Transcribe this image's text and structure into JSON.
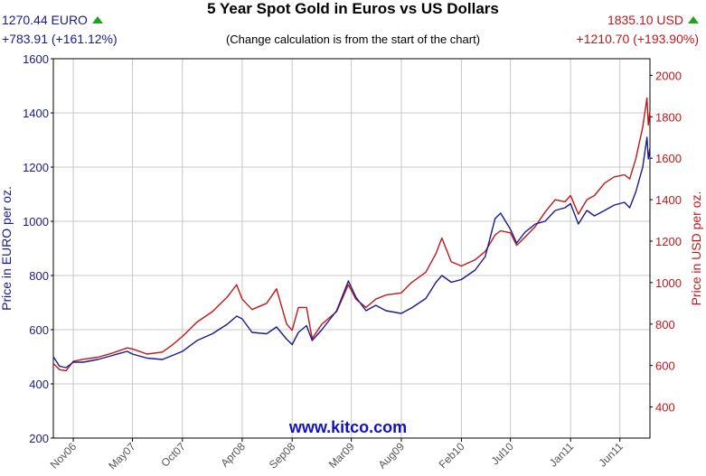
{
  "header": {
    "euro_price": "1270.44 EURO",
    "euro_change": "+783.91 (+161.12%)",
    "usd_price": "1835.10 USD",
    "usd_change": "+1210.70 (+193.90%)",
    "up_icon": "up-triangle-icon",
    "up_color": "#1fa31f"
  },
  "chart_data": {
    "type": "line",
    "title": "5 Year Spot Gold in Euros vs US Dollars",
    "subtitle": "(Change calculation is from the start of the chart)",
    "watermark": "www.kitco.com",
    "ylabel_left": "Price in EURO per oz.",
    "ylabel_right": "Price in USD per oz.",
    "ylim_left": [
      200,
      1600
    ],
    "ylim_right": [
      250,
      2080
    ],
    "yticks_left": [
      200,
      400,
      600,
      800,
      1000,
      1200,
      1400,
      1600
    ],
    "yticks_right": [
      400,
      600,
      800,
      1000,
      1200,
      1400,
      1600,
      1800,
      2000
    ],
    "xlim": [
      "2006-09-01",
      "2011-09-01"
    ],
    "x_ticks": [
      {
        "label": "Nov06",
        "date": "2006-11-01"
      },
      {
        "label": "May07",
        "date": "2007-05-01"
      },
      {
        "label": "Oct07",
        "date": "2007-10-01"
      },
      {
        "label": "Apr08",
        "date": "2008-04-01"
      },
      {
        "label": "Sep08",
        "date": "2008-09-01"
      },
      {
        "label": "Mar09",
        "date": "2009-03-01"
      },
      {
        "label": "Aug09",
        "date": "2009-08-01"
      },
      {
        "label": "Feb10",
        "date": "2010-02-01"
      },
      {
        "label": "Jul10",
        "date": "2010-07-01"
      },
      {
        "label": "Jan11",
        "date": "2011-01-01"
      },
      {
        "label": "Jun11",
        "date": "2011-06-01"
      }
    ],
    "grid": true,
    "colors": {
      "euro": "#1a1a8c",
      "usd": "#c0171b",
      "grid": "#c8c8c8",
      "axis": "#000000"
    },
    "series": [
      {
        "axis": "left",
        "color": "#1a1a8c",
        "points": [
          [
            "2006-09-01",
            500
          ],
          [
            "2006-09-20",
            465
          ],
          [
            "2006-10-10",
            460
          ],
          [
            "2006-11-01",
            480
          ],
          [
            "2006-12-01",
            480
          ],
          [
            "2007-01-15",
            490
          ],
          [
            "2007-03-01",
            505
          ],
          [
            "2007-04-15",
            520
          ],
          [
            "2007-05-01",
            510
          ],
          [
            "2007-06-15",
            495
          ],
          [
            "2007-08-01",
            490
          ],
          [
            "2007-09-01",
            505
          ],
          [
            "2007-10-01",
            520
          ],
          [
            "2007-11-15",
            560
          ],
          [
            "2008-01-01",
            585
          ],
          [
            "2008-02-15",
            620
          ],
          [
            "2008-03-15",
            650
          ],
          [
            "2008-04-01",
            640
          ],
          [
            "2008-05-01",
            590
          ],
          [
            "2008-06-15",
            585
          ],
          [
            "2008-07-15",
            610
          ],
          [
            "2008-08-15",
            565
          ],
          [
            "2008-09-01",
            545
          ],
          [
            "2008-09-20",
            590
          ],
          [
            "2008-10-15",
            615
          ],
          [
            "2008-11-01",
            560
          ],
          [
            "2008-12-01",
            600
          ],
          [
            "2009-01-15",
            670
          ],
          [
            "2009-02-20",
            780
          ],
          [
            "2009-03-15",
            720
          ],
          [
            "2009-04-15",
            670
          ],
          [
            "2009-05-15",
            690
          ],
          [
            "2009-06-15",
            670
          ],
          [
            "2009-08-01",
            660
          ],
          [
            "2009-09-01",
            680
          ],
          [
            "2009-10-15",
            715
          ],
          [
            "2009-11-15",
            775
          ],
          [
            "2009-12-03",
            800
          ],
          [
            "2010-01-01",
            775
          ],
          [
            "2010-02-01",
            785
          ],
          [
            "2010-03-15",
            820
          ],
          [
            "2010-04-15",
            870
          ],
          [
            "2010-05-15",
            1010
          ],
          [
            "2010-06-01",
            1030
          ],
          [
            "2010-07-01",
            970
          ],
          [
            "2010-07-20",
            920
          ],
          [
            "2010-08-15",
            960
          ],
          [
            "2010-09-15",
            990
          ],
          [
            "2010-10-15",
            1000
          ],
          [
            "2010-11-15",
            1040
          ],
          [
            "2010-12-15",
            1050
          ],
          [
            "2011-01-01",
            1065
          ],
          [
            "2011-01-25",
            990
          ],
          [
            "2011-02-20",
            1040
          ],
          [
            "2011-03-15",
            1020
          ],
          [
            "2011-04-15",
            1040
          ],
          [
            "2011-05-15",
            1060
          ],
          [
            "2011-06-15",
            1070
          ],
          [
            "2011-07-01",
            1050
          ],
          [
            "2011-07-20",
            1110
          ],
          [
            "2011-08-10",
            1200
          ],
          [
            "2011-08-23",
            1310
          ],
          [
            "2011-08-27",
            1230
          ],
          [
            "2011-09-01",
            1270
          ]
        ]
      },
      {
        "axis": "right",
        "color": "#c0171b",
        "points": [
          [
            "2006-09-01",
            610
          ],
          [
            "2006-09-20",
            580
          ],
          [
            "2006-10-10",
            575
          ],
          [
            "2006-11-01",
            620
          ],
          [
            "2006-12-01",
            630
          ],
          [
            "2007-01-15",
            640
          ],
          [
            "2007-03-01",
            660
          ],
          [
            "2007-04-15",
            685
          ],
          [
            "2007-05-01",
            680
          ],
          [
            "2007-06-15",
            655
          ],
          [
            "2007-08-01",
            665
          ],
          [
            "2007-09-01",
            700
          ],
          [
            "2007-10-01",
            740
          ],
          [
            "2007-11-15",
            810
          ],
          [
            "2008-01-01",
            860
          ],
          [
            "2008-02-15",
            930
          ],
          [
            "2008-03-15",
            990
          ],
          [
            "2008-04-01",
            920
          ],
          [
            "2008-05-01",
            870
          ],
          [
            "2008-06-15",
            900
          ],
          [
            "2008-07-15",
            970
          ],
          [
            "2008-08-15",
            800
          ],
          [
            "2008-09-01",
            770
          ],
          [
            "2008-09-20",
            880
          ],
          [
            "2008-10-15",
            880
          ],
          [
            "2008-11-01",
            730
          ],
          [
            "2008-12-01",
            800
          ],
          [
            "2009-01-15",
            860
          ],
          [
            "2009-02-20",
            990
          ],
          [
            "2009-03-15",
            920
          ],
          [
            "2009-04-15",
            880
          ],
          [
            "2009-05-15",
            920
          ],
          [
            "2009-06-15",
            940
          ],
          [
            "2009-08-01",
            950
          ],
          [
            "2009-09-01",
            1000
          ],
          [
            "2009-10-15",
            1050
          ],
          [
            "2009-11-15",
            1140
          ],
          [
            "2009-12-03",
            1215
          ],
          [
            "2010-01-01",
            1100
          ],
          [
            "2010-02-01",
            1080
          ],
          [
            "2010-03-15",
            1110
          ],
          [
            "2010-04-15",
            1150
          ],
          [
            "2010-05-15",
            1230
          ],
          [
            "2010-06-01",
            1250
          ],
          [
            "2010-07-01",
            1240
          ],
          [
            "2010-07-20",
            1180
          ],
          [
            "2010-08-15",
            1220
          ],
          [
            "2010-09-15",
            1270
          ],
          [
            "2010-10-15",
            1340
          ],
          [
            "2010-11-15",
            1400
          ],
          [
            "2010-12-15",
            1390
          ],
          [
            "2011-01-01",
            1420
          ],
          [
            "2011-01-25",
            1330
          ],
          [
            "2011-02-20",
            1400
          ],
          [
            "2011-03-15",
            1420
          ],
          [
            "2011-04-15",
            1480
          ],
          [
            "2011-05-15",
            1510
          ],
          [
            "2011-06-15",
            1520
          ],
          [
            "2011-07-01",
            1500
          ],
          [
            "2011-07-20",
            1600
          ],
          [
            "2011-08-10",
            1750
          ],
          [
            "2011-08-23",
            1890
          ],
          [
            "2011-08-27",
            1760
          ],
          [
            "2011-09-01",
            1830
          ]
        ]
      }
    ]
  }
}
